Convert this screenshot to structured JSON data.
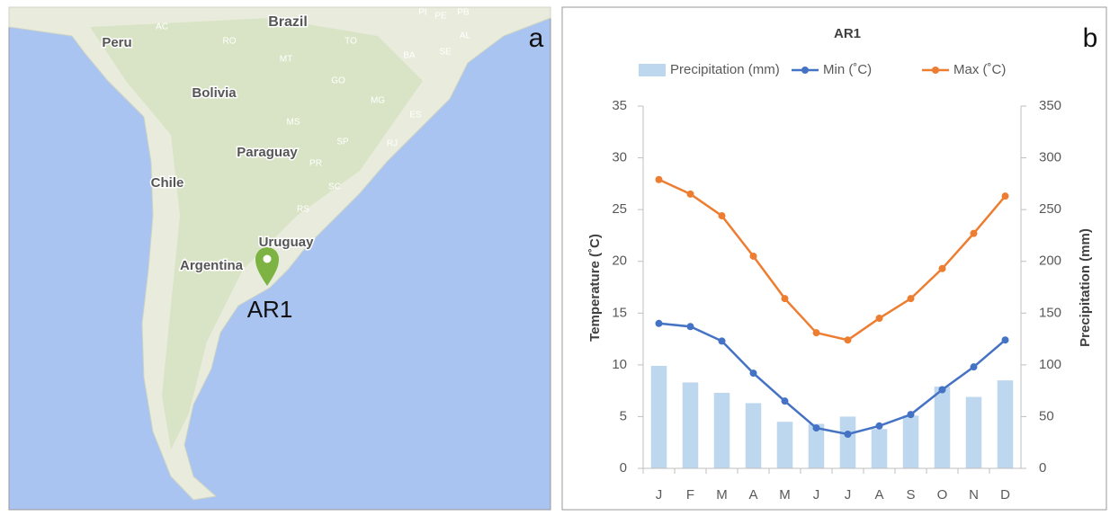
{
  "panel_labels": [
    "a",
    "b"
  ],
  "map": {
    "labels": [
      "Brazil",
      "Peru",
      "Bolivia",
      "Paraguay",
      "Chile",
      "Uruguay",
      "Argentina",
      "AC",
      "RO",
      "MT",
      "TO",
      "BA",
      "SE",
      "AL",
      "PE",
      "PB",
      "PI",
      "GO",
      "MG",
      "ES",
      "MS",
      "SP",
      "RJ",
      "PR",
      "SC",
      "RS"
    ],
    "marker_label": "AR1"
  },
  "chart_data": {
    "type": "combo",
    "title": "AR1",
    "categories": [
      "J",
      "F",
      "M",
      "A",
      "M",
      "J",
      "J",
      "A",
      "S",
      "O",
      "N",
      "D"
    ],
    "series": [
      {
        "name": "Precipitation (mm)",
        "type": "bar",
        "axis": "y2",
        "color": "#bdd7ee",
        "values": [
          99,
          83,
          73,
          63,
          45,
          43,
          50,
          38,
          51,
          79,
          69,
          85
        ]
      },
      {
        "name": "Min (˚C)",
        "type": "line",
        "color": "#4472c4",
        "values": [
          14.0,
          13.7,
          12.3,
          9.2,
          6.5,
          3.9,
          3.3,
          4.1,
          5.2,
          7.6,
          9.8,
          12.4
        ]
      },
      {
        "name": "Max (˚C)",
        "type": "line",
        "color": "#ed7d31",
        "values": [
          27.9,
          26.5,
          24.4,
          20.5,
          16.4,
          13.1,
          12.4,
          14.5,
          16.4,
          19.3,
          22.7,
          26.3
        ]
      }
    ],
    "ylabel": "Temperature (˚C)",
    "y2label": "Precipitation (mm)",
    "ylim": [
      0,
      35
    ],
    "yticks": [
      0,
      5,
      10,
      15,
      20,
      25,
      30,
      35
    ],
    "y2lim": [
      0,
      350
    ],
    "y2ticks": [
      0,
      50,
      100,
      150,
      200,
      250,
      300,
      350
    ],
    "legend": "top"
  }
}
